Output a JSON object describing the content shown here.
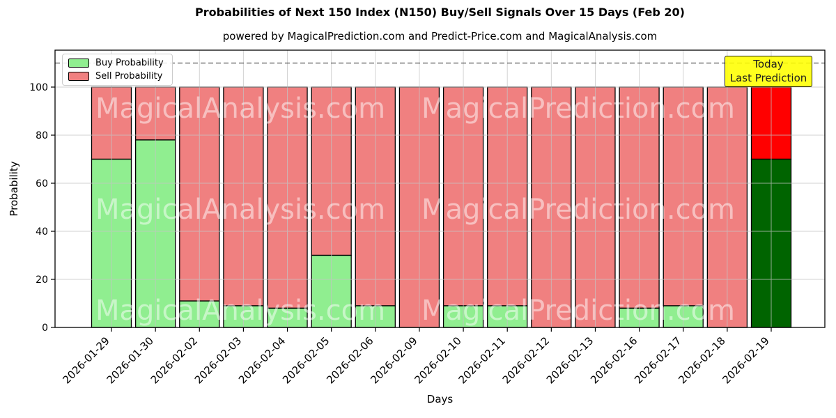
{
  "title": "Probabilities of Next 150 Index (N150) Buy/Sell Signals Over 15 Days (Feb 20)",
  "subtitle": "powered by MagicalPrediction.com and Predict-Price.com and MagicalAnalysis.com",
  "legend": {
    "buy_label": "Buy Probability",
    "sell_label": "Sell Probability"
  },
  "annotation": {
    "line1": "Today",
    "line2": "Last Prediction",
    "bg_color": "#FFFF00"
  },
  "watermarks": [
    "MagicalAnalysis.com",
    "MagicalPrediction.com"
  ],
  "chart_data": {
    "type": "bar",
    "stacked": true,
    "title": "Probabilities of Next 150 Index (N150) Buy/Sell Signals Over 15 Days (Feb 20)",
    "xlabel": "Days",
    "ylabel": "Probability",
    "categories": [
      "2026-01-29",
      "2026-01-30",
      "2026-02-02",
      "2026-02-03",
      "2026-02-04",
      "2026-02-05",
      "2026-02-06",
      "2026-02-09",
      "2026-02-10",
      "2026-02-11",
      "2026-02-12",
      "2026-02-13",
      "2026-02-16",
      "2026-02-17",
      "2026-02-18",
      "2026-02-19"
    ],
    "series": [
      {
        "name": "Buy Probability",
        "values": [
          70,
          78,
          11,
          9,
          8,
          30,
          9,
          0,
          9,
          9,
          0,
          0,
          8,
          9,
          0,
          70
        ]
      },
      {
        "name": "Sell Probability",
        "values": [
          30,
          22,
          89,
          91,
          92,
          70,
          91,
          100,
          91,
          91,
          100,
          100,
          92,
          91,
          100,
          30
        ]
      }
    ],
    "ylim": [
      0,
      115.4
    ],
    "yticks": [
      0,
      20,
      40,
      60,
      80,
      100
    ],
    "dashed_hline": 110,
    "grid": true,
    "legend_position": "upper left",
    "colors": {
      "buy": "#90EE90",
      "sell": "#F08080",
      "buy_last": "#006400",
      "sell_last": "#FF0000",
      "grid": "#c4c4c4",
      "dashed_line": "#555555",
      "bar_edge": "#000000",
      "watermark": "#FFFFFF"
    }
  }
}
